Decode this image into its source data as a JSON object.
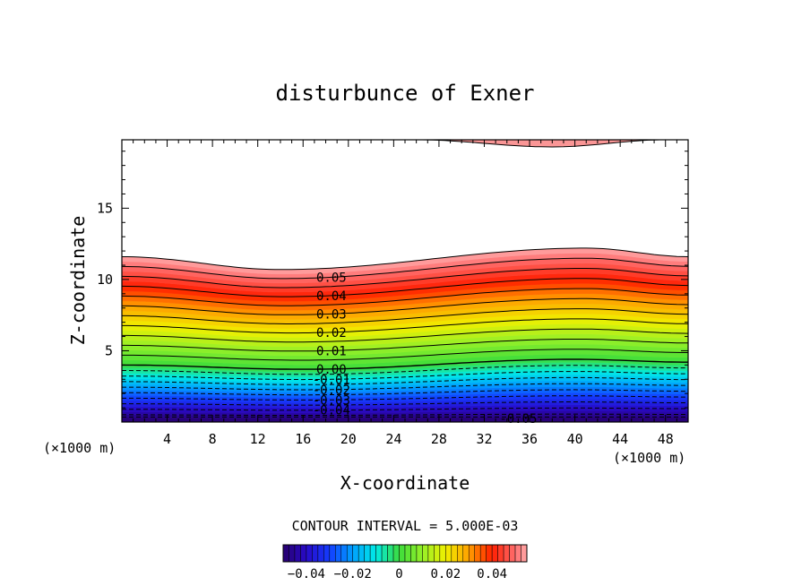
{
  "chart_data": {
    "type": "contour",
    "title": "disturbunce of Exner",
    "xlabel": "X-coordinate",
    "ylabel": "Z-coordinate",
    "x_units": "(×1000 m)",
    "x_units_right": "(×1000 m)",
    "xlim": [
      0,
      50
    ],
    "ylim": [
      0,
      19.8
    ],
    "x_ticks": [
      4,
      8,
      12,
      16,
      20,
      24,
      28,
      32,
      36,
      40,
      44,
      48
    ],
    "y_ticks": [
      5,
      10,
      15
    ],
    "contour_interval_text": "CONTOUR INTERVAL = 5.000E-03",
    "colorbar": {
      "range": [
        -0.05,
        0.055
      ],
      "tick_values": [
        -0.04,
        -0.02,
        0,
        0.02,
        0.04
      ],
      "tick_labels": [
        "−0.04",
        "−0.02",
        "0",
        "0.02",
        "0.04"
      ]
    },
    "contour_labels": [
      {
        "value": 0.05,
        "text": "0.05"
      },
      {
        "value": 0.04,
        "text": "0.04"
      },
      {
        "value": 0.03,
        "text": "0.03"
      },
      {
        "value": 0.02,
        "text": "0.02"
      },
      {
        "value": 0.01,
        "text": "0.01"
      },
      {
        "value": 0.0,
        "text": "0.00"
      },
      {
        "value": -0.01,
        "text": "-0.01"
      },
      {
        "value": -0.02,
        "text": "-0.02"
      },
      {
        "value": -0.03,
        "text": "-0.03"
      },
      {
        "value": -0.04,
        "text": "-0.04"
      },
      {
        "value": -0.05,
        "text": "-0.05"
      }
    ],
    "field_description_points": {
      "zero_line_height_at_x": [
        [
          0,
          4.0
        ],
        [
          16,
          3.7
        ],
        [
          40,
          4.4
        ],
        [
          50,
          4.2
        ]
      ],
      "top_0p055_height_at_x": [
        [
          0,
          11.6
        ],
        [
          14,
          10.7
        ],
        [
          41,
          12.2
        ],
        [
          50,
          11.6
        ]
      ],
      "upper_blob_bottom_at_x": [
        [
          26,
          19.8
        ],
        [
          38,
          19.3
        ],
        [
          48,
          19.8
        ]
      ]
    }
  }
}
